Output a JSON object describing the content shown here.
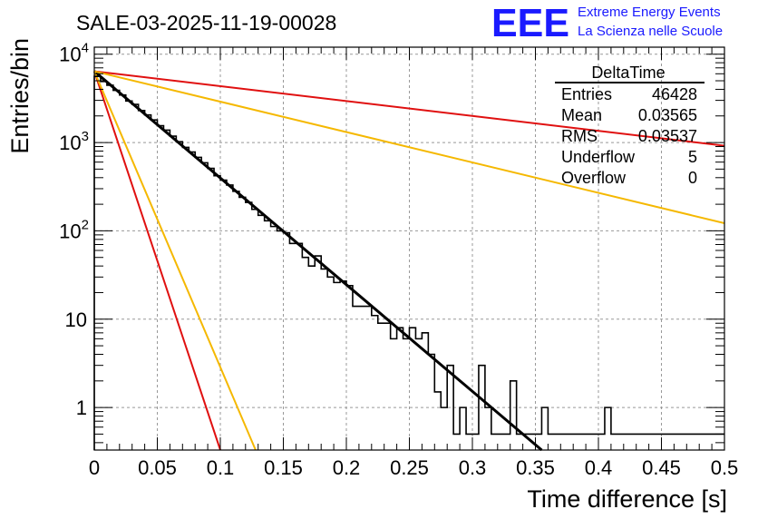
{
  "chart_data": {
    "type": "histogram",
    "title": "SALE-03-2025-11-19-00028",
    "xlabel": "Time difference [s]",
    "ylabel": "Entries/bin",
    "xlim": [
      0,
      0.5
    ],
    "ylim": [
      0.33,
      12000
    ],
    "yscale": "log",
    "grid": true,
    "x_ticks": [
      0,
      0.05,
      0.1,
      0.15,
      0.2,
      0.25,
      0.3,
      0.35,
      0.4,
      0.45,
      0.5
    ],
    "x_tick_labels": [
      "0",
      "0.05",
      "0.1",
      "0.15",
      "0.2",
      "0.25",
      "0.3",
      "0.35",
      "0.4",
      "0.45",
      "0.5"
    ],
    "y_ticks": [
      1,
      10,
      100,
      1000,
      10000
    ],
    "y_tick_labels": [
      {
        "base": "1",
        "exp": ""
      },
      {
        "base": "10",
        "exp": ""
      },
      {
        "base": "10",
        "exp": "2"
      },
      {
        "base": "10",
        "exp": "3"
      },
      {
        "base": "10",
        "exp": "4"
      }
    ],
    "histogram": {
      "name": "DeltaTime",
      "bin_width": 0.005,
      "bin_edges_start": 0,
      "counts": [
        5600,
        4900,
        4450,
        3900,
        3450,
        2950,
        2700,
        2300,
        2050,
        1800,
        1550,
        1380,
        1180,
        1020,
        880,
        780,
        680,
        590,
        510,
        420,
        375,
        330,
        280,
        240,
        210,
        175,
        150,
        130,
        112,
        100,
        95,
        72,
        72,
        50,
        40,
        52,
        37,
        30,
        26,
        27,
        24,
        14,
        14,
        14,
        11,
        9,
        9,
        6,
        8,
        6,
        8,
        6,
        7,
        4,
        1.5,
        1,
        3,
        0.5,
        1,
        0.5,
        0.5,
        3,
        1,
        0.5,
        0.5,
        0.5,
        2,
        0.5,
        0.5,
        0.5,
        0.5,
        1,
        0.5,
        0.5,
        0.5,
        0.5,
        0.5,
        0.5,
        0.5,
        0.5,
        0.5,
        1,
        0.5,
        0.5,
        0.5,
        0.5,
        0.5,
        0.5,
        0.5,
        0.5,
        0.5,
        0.5,
        0.5,
        0.5,
        0.5,
        0.5,
        0.5,
        0.5,
        0.5,
        0.5
      ],
      "color": "#000000"
    },
    "fit_curves": [
      {
        "name": "fit",
        "x": [
          0,
          0.355
        ],
        "y": [
          6400,
          0.33
        ],
        "color": "#000000"
      },
      {
        "name": "red-steep",
        "x": [
          0,
          0.1
        ],
        "y": [
          6400,
          0.33
        ],
        "color": "#e01010"
      },
      {
        "name": "orange-steep",
        "x": [
          0,
          0.128
        ],
        "y": [
          6400,
          0.33
        ],
        "color": "#f5b800"
      },
      {
        "name": "red-shallow",
        "x": [
          0,
          0.5
        ],
        "y": [
          6400,
          920
        ],
        "color": "#e01010"
      },
      {
        "name": "orange-shallow",
        "x": [
          0,
          0.5
        ],
        "y": [
          6400,
          122
        ],
        "color": "#f5b800"
      }
    ],
    "stats_box": {
      "title": "DeltaTime",
      "rows": [
        {
          "label": "Entries",
          "value": "46428"
        },
        {
          "label": "Mean",
          "value": "0.03565"
        },
        {
          "label": "RMS",
          "value": "0.03537"
        },
        {
          "label": "Underflow",
          "value": "5"
        },
        {
          "label": "Overflow",
          "value": "0"
        }
      ]
    }
  },
  "logo": {
    "mark": "EEE",
    "line1": "Extreme Energy Events",
    "line2": "La Scienza nelle Scuole"
  }
}
